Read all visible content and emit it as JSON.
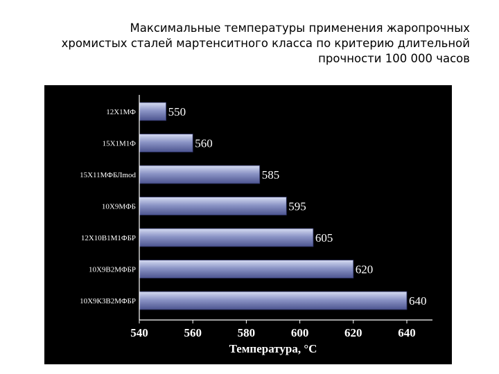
{
  "title_lines": [
    "Максимальные температуры применения  жаропрочных",
    "хромистых сталей мартенситного класса по критерию длительной",
    "прочности 100 000 часов"
  ],
  "colors": {
    "panel_background": "#000000",
    "bar_light": "#d6dcf2",
    "bar_mid": "#8c95c6",
    "bar_dark": "#4d5590",
    "text": "#ffffff"
  },
  "chart_data": {
    "type": "bar",
    "orientation": "horizontal",
    "categories": [
      "12Х1МФ",
      "15Х1М1Ф",
      "15Х11МФБЛmod",
      "10Х9МФБ",
      "12Х10В1М1ФБР",
      "10Х9В2МФБР",
      "10Х9К3В2МФБР"
    ],
    "values": [
      550,
      560,
      585,
      595,
      605,
      620,
      640
    ],
    "value_labels": [
      "550",
      "560",
      "585",
      "595",
      "605",
      "620",
      "640"
    ],
    "xlabel": "Температура, °С",
    "ylabel": "",
    "xlim": [
      540,
      640
    ],
    "xticks": [
      540,
      560,
      580,
      600,
      620,
      640
    ],
    "grid": false,
    "legend": "none"
  }
}
